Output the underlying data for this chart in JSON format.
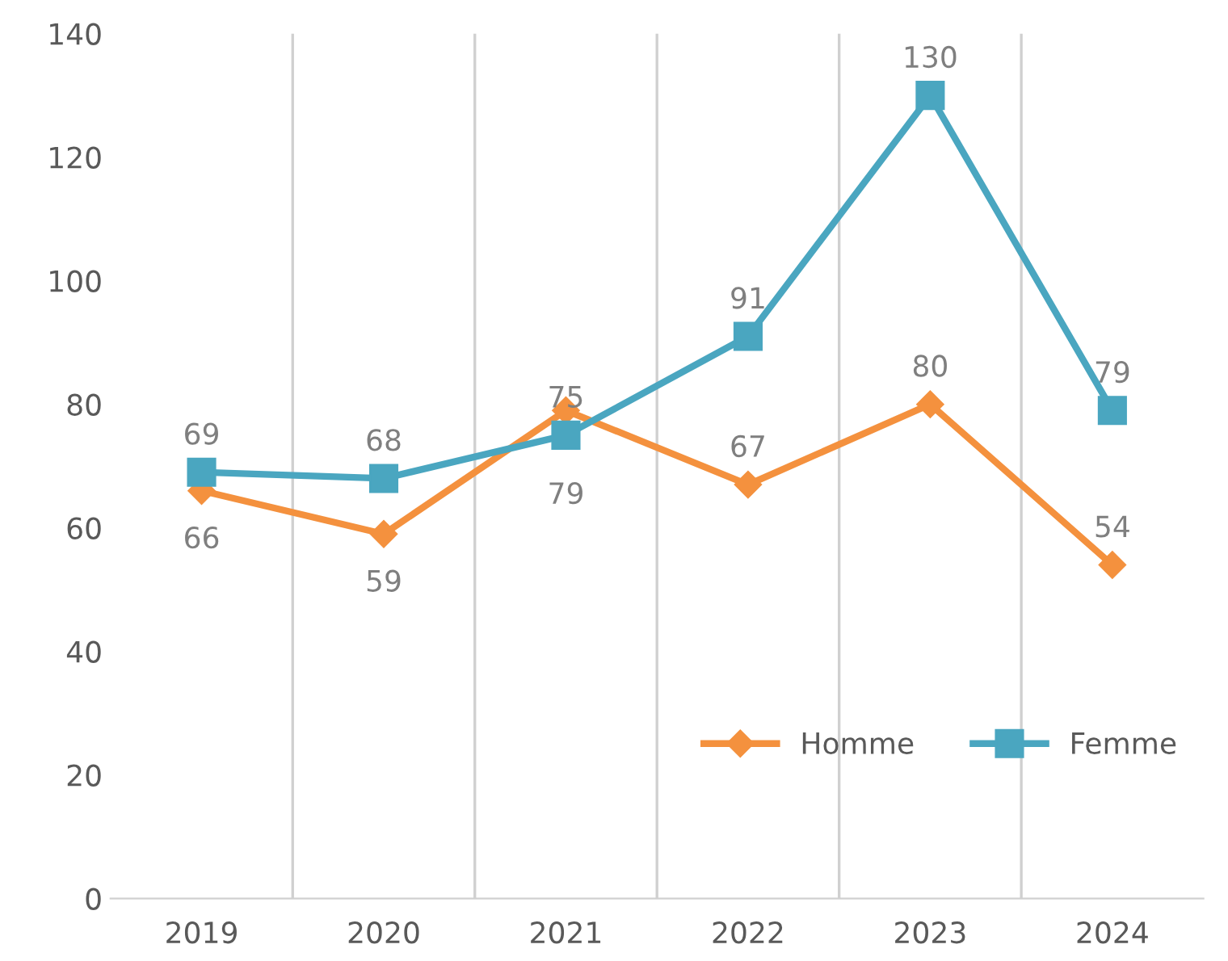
{
  "chart_data": {
    "type": "line",
    "categories": [
      "2019",
      "2020",
      "2021",
      "2022",
      "2023",
      "2024"
    ],
    "series": [
      {
        "name": "Homme",
        "color": "#f4913e",
        "marker": "diamond",
        "values": [
          66,
          59,
          79,
          67,
          80,
          54
        ]
      },
      {
        "name": "Femme",
        "color": "#4aa6c0",
        "marker": "square",
        "values": [
          69,
          68,
          75,
          91,
          130,
          79
        ]
      }
    ],
    "ylim": [
      0,
      140
    ],
    "yticks": [
      0,
      20,
      40,
      60,
      80,
      100,
      120,
      140
    ],
    "grid": "x",
    "legend": "bottom right",
    "data_labels": true,
    "line_style": "solid"
  }
}
